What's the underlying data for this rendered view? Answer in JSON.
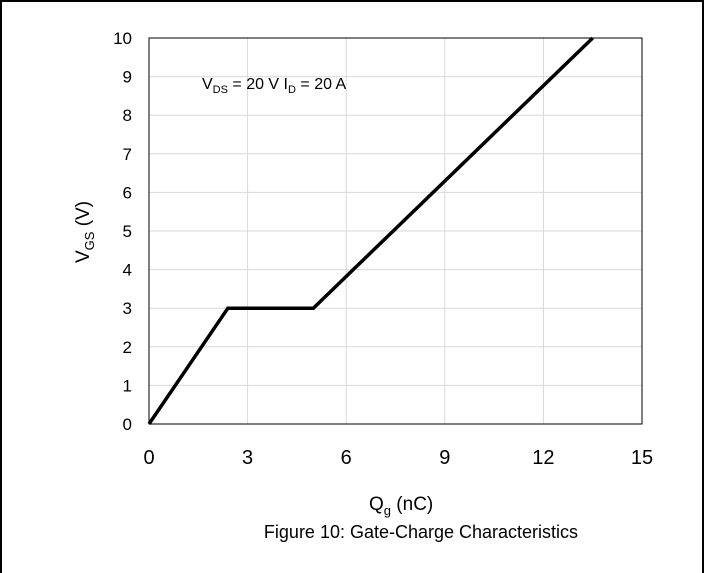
{
  "chart_data": {
    "type": "line",
    "xlabel": {
      "main": "Q",
      "sub": "g",
      "rest": " (nC)"
    },
    "ylabel": {
      "main": "V",
      "sub": "GS",
      "rest": " (V)"
    },
    "caption": "Figure 10: Gate-Charge Characteristics",
    "annotation": {
      "p1_main": "V",
      "p1_sub": "DS",
      "p1_rest": " = 20 V ",
      "p2_main": "I",
      "p2_sub": "D",
      "p2_rest": " = 20 A"
    },
    "xlim": [
      0,
      15
    ],
    "ylim": [
      0,
      10
    ],
    "xticks": [
      0,
      3,
      6,
      9,
      12,
      15
    ],
    "yticks": [
      0,
      1,
      2,
      3,
      4,
      5,
      6,
      7,
      8,
      9,
      10
    ],
    "grid": true,
    "line_color": "#000000",
    "series": [
      {
        "x": [
          0,
          2.4,
          5.0,
          13.5
        ],
        "y": [
          0,
          3,
          3,
          10
        ]
      }
    ]
  }
}
